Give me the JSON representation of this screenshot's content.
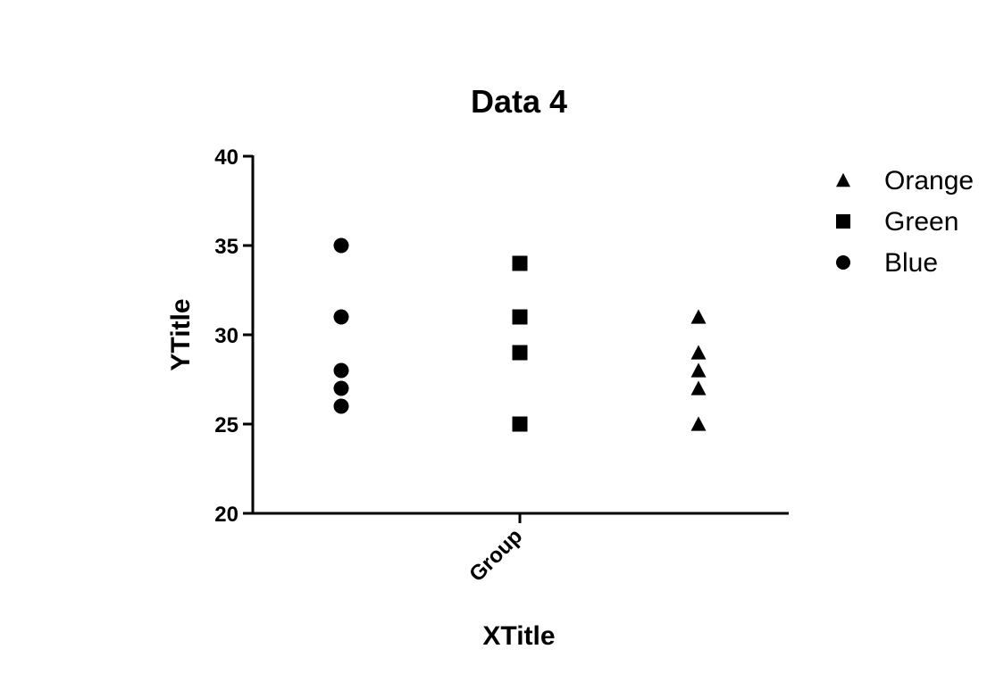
{
  "chart_data": {
    "type": "scatter",
    "title": "Data 4",
    "xlabel": "XTitle",
    "ylabel": "YTitle",
    "categories": [
      "Group"
    ],
    "ylim": [
      20,
      40
    ],
    "yticks": [
      20,
      25,
      30,
      35,
      40
    ],
    "grid": false,
    "legend_position": "right",
    "series": [
      {
        "name": "Blue",
        "marker": "circle",
        "color": "#000000",
        "values": [
          35,
          31,
          28,
          27,
          26
        ]
      },
      {
        "name": "Green",
        "marker": "square",
        "color": "#000000",
        "values": [
          34,
          31,
          29,
          25
        ]
      },
      {
        "name": "Orange",
        "marker": "triangle",
        "color": "#000000",
        "values": [
          31,
          29,
          28,
          27,
          25
        ]
      }
    ],
    "legend_order": [
      "Orange",
      "Green",
      "Blue"
    ]
  }
}
